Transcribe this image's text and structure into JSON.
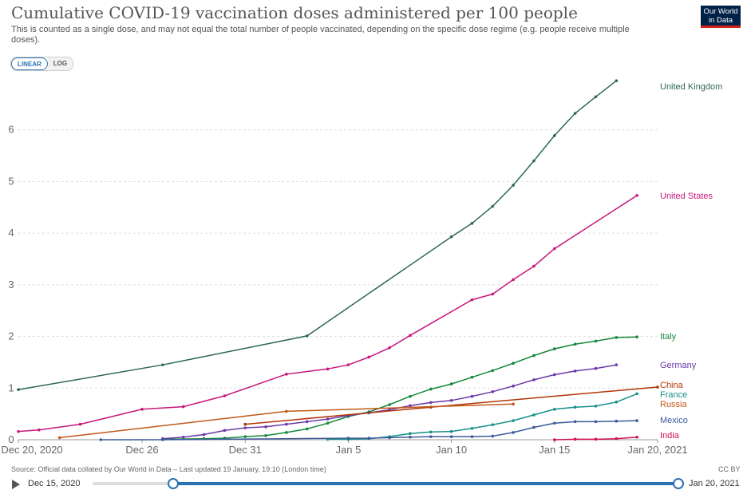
{
  "header": {
    "title": "Cumulative COVID-19 vaccination doses administered per 100 people",
    "subtitle": "This is counted as a single dose, and may not equal the total number of people vaccinated, depending on the specific dose regime (e.g. people receive multiple doses).",
    "logo_line1": "Our World",
    "logo_line2": "in Data"
  },
  "controls": {
    "scale_linear": "LINEAR",
    "scale_log": "LOG",
    "active_scale": "LINEAR"
  },
  "footer": {
    "source": "Source: Official data collated by Our World in Data – Last updated 19 January, 19:10 (London time)",
    "license": "CC BY"
  },
  "timeline": {
    "start_label": "Dec 15, 2020",
    "end_label": "Jan 20, 2021",
    "selected_start": "Dec 20, 2020",
    "selected_end": "Jan 20, 2021"
  },
  "colors": {
    "United Kingdom": "#2e6a4f",
    "United States": "#c8177a",
    "Italy": "#13873a",
    "Germany": "#6b3aa8",
    "China": "#b13507",
    "France": "#15908a",
    "Russia": "#c05917",
    "Mexico": "#3c5a99",
    "India": "#d4114f",
    "grid": "#dddddd",
    "accent": "#2a72b3"
  },
  "chart_data": {
    "type": "line",
    "title": "Cumulative COVID-19 vaccination doses administered per 100 people",
    "xlabel": "",
    "ylabel": "",
    "x_range": [
      "2020-12-20",
      "2021-01-20"
    ],
    "x_ticks": [
      {
        "date": "2020-12-20",
        "label": "Dec 20, 2020"
      },
      {
        "date": "2020-12-26",
        "label": "Dec 26"
      },
      {
        "date": "2020-12-31",
        "label": "Dec 31"
      },
      {
        "date": "2021-01-05",
        "label": "Jan 5"
      },
      {
        "date": "2021-01-10",
        "label": "Jan 10"
      },
      {
        "date": "2021-01-15",
        "label": "Jan 15"
      },
      {
        "date": "2021-01-20",
        "label": "Jan 20, 2021"
      }
    ],
    "ylim": [
      0,
      7
    ],
    "y_ticks": [
      0,
      1,
      2,
      3,
      4,
      5,
      6
    ],
    "grid": true,
    "legend": "right-end labels",
    "series": [
      {
        "name": "United Kingdom",
        "points": [
          [
            "2020-12-20",
            0.97
          ],
          [
            "2020-12-27",
            1.45
          ],
          [
            "2021-01-03",
            2.01
          ],
          [
            "2021-01-10",
            3.93
          ],
          [
            "2021-01-11",
            4.19
          ],
          [
            "2021-01-12",
            4.52
          ],
          [
            "2021-01-13",
            4.93
          ],
          [
            "2021-01-14",
            5.4
          ],
          [
            "2021-01-15",
            5.89
          ],
          [
            "2021-01-16",
            6.32
          ],
          [
            "2021-01-17",
            6.64
          ],
          [
            "2021-01-18",
            6.95
          ]
        ]
      },
      {
        "name": "United States",
        "points": [
          [
            "2020-12-20",
            0.16
          ],
          [
            "2020-12-21",
            0.19
          ],
          [
            "2020-12-23",
            0.3
          ],
          [
            "2020-12-26",
            0.59
          ],
          [
            "2020-12-28",
            0.64
          ],
          [
            "2020-12-30",
            0.85
          ],
          [
            "2021-01-02",
            1.27
          ],
          [
            "2021-01-04",
            1.37
          ],
          [
            "2021-01-05",
            1.45
          ],
          [
            "2021-01-06",
            1.6
          ],
          [
            "2021-01-07",
            1.78
          ],
          [
            "2021-01-08",
            2.02
          ],
          [
            "2021-01-11",
            2.71
          ],
          [
            "2021-01-12",
            2.82
          ],
          [
            "2021-01-13",
            3.1
          ],
          [
            "2021-01-14",
            3.36
          ],
          [
            "2021-01-15",
            3.7
          ],
          [
            "2021-01-19",
            4.73
          ]
        ]
      },
      {
        "name": "Italy",
        "points": [
          [
            "2020-12-27",
            0.01
          ],
          [
            "2020-12-29",
            0.02
          ],
          [
            "2020-12-30",
            0.03
          ],
          [
            "2020-12-31",
            0.06
          ],
          [
            "2021-01-01",
            0.08
          ],
          [
            "2021-01-02",
            0.14
          ],
          [
            "2021-01-03",
            0.21
          ],
          [
            "2021-01-04",
            0.32
          ],
          [
            "2021-01-05",
            0.45
          ],
          [
            "2021-01-06",
            0.54
          ],
          [
            "2021-01-07",
            0.68
          ],
          [
            "2021-01-08",
            0.84
          ],
          [
            "2021-01-09",
            0.98
          ],
          [
            "2021-01-10",
            1.08
          ],
          [
            "2021-01-11",
            1.21
          ],
          [
            "2021-01-12",
            1.34
          ],
          [
            "2021-01-13",
            1.48
          ],
          [
            "2021-01-14",
            1.63
          ],
          [
            "2021-01-15",
            1.76
          ],
          [
            "2021-01-16",
            1.85
          ],
          [
            "2021-01-17",
            1.91
          ],
          [
            "2021-01-18",
            1.98
          ],
          [
            "2021-01-19",
            1.99
          ]
        ]
      },
      {
        "name": "Germany",
        "points": [
          [
            "2020-12-27",
            0.02
          ],
          [
            "2020-12-28",
            0.05
          ],
          [
            "2020-12-29",
            0.1
          ],
          [
            "2020-12-30",
            0.18
          ],
          [
            "2020-12-31",
            0.23
          ],
          [
            "2021-01-01",
            0.25
          ],
          [
            "2021-01-02",
            0.3
          ],
          [
            "2021-01-03",
            0.35
          ],
          [
            "2021-01-04",
            0.4
          ],
          [
            "2021-01-05",
            0.47
          ],
          [
            "2021-01-06",
            0.52
          ],
          [
            "2021-01-07",
            0.58
          ],
          [
            "2021-01-08",
            0.66
          ],
          [
            "2021-01-09",
            0.72
          ],
          [
            "2021-01-10",
            0.76
          ],
          [
            "2021-01-11",
            0.84
          ],
          [
            "2021-01-12",
            0.93
          ],
          [
            "2021-01-13",
            1.04
          ],
          [
            "2021-01-14",
            1.16
          ],
          [
            "2021-01-15",
            1.26
          ],
          [
            "2021-01-16",
            1.33
          ],
          [
            "2021-01-17",
            1.38
          ],
          [
            "2021-01-18",
            1.45
          ]
        ]
      },
      {
        "name": "China",
        "points": [
          [
            "2020-12-31",
            0.3
          ],
          [
            "2021-01-09",
            0.63
          ],
          [
            "2021-01-20",
            1.02
          ]
        ]
      },
      {
        "name": "France",
        "points": [
          [
            "2021-01-04",
            0.01
          ],
          [
            "2021-01-05",
            0.01
          ],
          [
            "2021-01-06",
            0.02
          ],
          [
            "2021-01-07",
            0.06
          ],
          [
            "2021-01-08",
            0.12
          ],
          [
            "2021-01-09",
            0.15
          ],
          [
            "2021-01-10",
            0.16
          ],
          [
            "2021-01-11",
            0.22
          ],
          [
            "2021-01-12",
            0.29
          ],
          [
            "2021-01-13",
            0.37
          ],
          [
            "2021-01-14",
            0.48
          ],
          [
            "2021-01-15",
            0.59
          ],
          [
            "2021-01-16",
            0.63
          ],
          [
            "2021-01-17",
            0.65
          ],
          [
            "2021-01-18",
            0.73
          ],
          [
            "2021-01-19",
            0.89
          ]
        ]
      },
      {
        "name": "Russia",
        "points": [
          [
            "2020-12-22",
            0.04
          ],
          [
            "2021-01-02",
            0.55
          ],
          [
            "2021-01-13",
            0.69
          ]
        ]
      },
      {
        "name": "Mexico",
        "points": [
          [
            "2020-12-24",
            0.0
          ],
          [
            "2020-12-27",
            0.0
          ],
          [
            "2021-01-05",
            0.03
          ],
          [
            "2021-01-06",
            0.03
          ],
          [
            "2021-01-07",
            0.04
          ],
          [
            "2021-01-08",
            0.05
          ],
          [
            "2021-01-09",
            0.06
          ],
          [
            "2021-01-10",
            0.06
          ],
          [
            "2021-01-11",
            0.06
          ],
          [
            "2021-01-12",
            0.07
          ],
          [
            "2021-01-13",
            0.14
          ],
          [
            "2021-01-14",
            0.24
          ],
          [
            "2021-01-15",
            0.32
          ],
          [
            "2021-01-16",
            0.35
          ],
          [
            "2021-01-17",
            0.35
          ],
          [
            "2021-01-18",
            0.36
          ],
          [
            "2021-01-19",
            0.37
          ]
        ]
      },
      {
        "name": "India",
        "points": [
          [
            "2021-01-15",
            0.0
          ],
          [
            "2021-01-16",
            0.01
          ],
          [
            "2021-01-17",
            0.01
          ],
          [
            "2021-01-18",
            0.02
          ],
          [
            "2021-01-19",
            0.05
          ]
        ]
      }
    ]
  }
}
